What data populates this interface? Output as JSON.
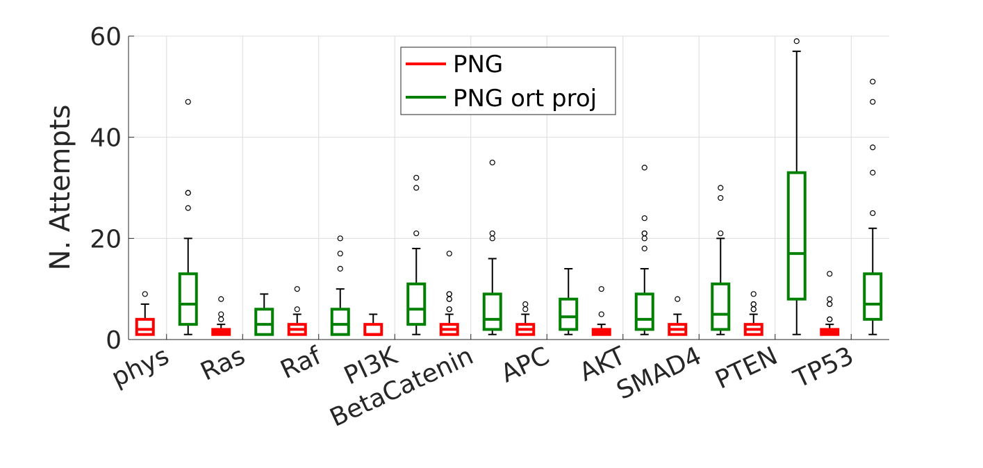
{
  "chart_data": {
    "type": "box",
    "ylabel": "N. Attempts",
    "ylim": [
      0,
      60
    ],
    "yticks": [
      0,
      20,
      40,
      60
    ],
    "grid": true,
    "legend_position": "top-center",
    "categories": [
      "phys",
      "Ras",
      "Raf",
      "PI3K",
      "BetaCatenin",
      "APC",
      "AKT",
      "SMAD4",
      "PTEN",
      "TP53"
    ],
    "series": [
      {
        "name": "PNG",
        "color": "#ff0000",
        "boxes": [
          {
            "whisker_low": 1,
            "q1": 1,
            "median": 2,
            "q3": 4,
            "whisker_high": 7,
            "outliers": [
              9
            ]
          },
          {
            "whisker_low": 1,
            "q1": 1,
            "median": 1.5,
            "q3": 2,
            "whisker_high": 3,
            "outliers": [
              4,
              5,
              8
            ]
          },
          {
            "whisker_low": 1,
            "q1": 1,
            "median": 2,
            "q3": 3,
            "whisker_high": 5,
            "outliers": [
              6,
              10
            ]
          },
          {
            "whisker_low": 1,
            "q1": 1,
            "median": 1,
            "q3": 3,
            "whisker_high": 5,
            "outliers": []
          },
          {
            "whisker_low": 1,
            "q1": 1,
            "median": 2,
            "q3": 3,
            "whisker_high": 5,
            "outliers": [
              6,
              6,
              8,
              8,
              9,
              9,
              17
            ]
          },
          {
            "whisker_low": 1,
            "q1": 1,
            "median": 2,
            "q3": 3,
            "whisker_high": 5,
            "outliers": [
              6,
              7
            ]
          },
          {
            "whisker_low": 1,
            "q1": 1,
            "median": 1.5,
            "q3": 2,
            "whisker_high": 3,
            "outliers": [
              5,
              10
            ]
          },
          {
            "whisker_low": 1,
            "q1": 1,
            "median": 2,
            "q3": 3,
            "whisker_high": 5,
            "outliers": [
              8
            ]
          },
          {
            "whisker_low": 1,
            "q1": 1,
            "median": 2,
            "q3": 3,
            "whisker_high": 5,
            "outliers": [
              6,
              6,
              7,
              7,
              9
            ]
          },
          {
            "whisker_low": 1,
            "q1": 1,
            "median": 1.5,
            "q3": 2,
            "whisker_high": 3,
            "outliers": [
              4,
              4,
              7,
              7,
              8,
              13
            ]
          }
        ]
      },
      {
        "name": "PNG ort proj",
        "color": "#008000",
        "boxes": [
          {
            "whisker_low": 1,
            "q1": 3,
            "median": 7,
            "q3": 13,
            "whisker_high": 20,
            "outliers": [
              26,
              29,
              29,
              47
            ]
          },
          {
            "whisker_low": 1,
            "q1": 1,
            "median": 3,
            "q3": 6,
            "whisker_high": 9,
            "outliers": []
          },
          {
            "whisker_low": 1,
            "q1": 1,
            "median": 3,
            "q3": 6,
            "whisker_high": 10,
            "outliers": [
              14,
              17,
              20
            ]
          },
          {
            "whisker_low": 1,
            "q1": 3,
            "median": 6,
            "q3": 11,
            "whisker_high": 18,
            "outliers": [
              21,
              30,
              32
            ]
          },
          {
            "whisker_low": 1,
            "q1": 2,
            "median": 4,
            "q3": 9,
            "whisker_high": 16,
            "outliers": [
              20,
              21,
              35
            ]
          },
          {
            "whisker_low": 1,
            "q1": 2,
            "median": 4.5,
            "q3": 8,
            "whisker_high": 14,
            "outliers": []
          },
          {
            "whisker_low": 1,
            "q1": 2,
            "median": 4,
            "q3": 9,
            "whisker_high": 14,
            "outliers": [
              18,
              20,
              21,
              21,
              24,
              34
            ]
          },
          {
            "whisker_low": 1,
            "q1": 2,
            "median": 5,
            "q3": 11,
            "whisker_high": 20,
            "outliers": [
              21,
              28,
              30
            ]
          },
          {
            "whisker_low": 1,
            "q1": 8,
            "median": 17,
            "q3": 33,
            "whisker_high": 57,
            "outliers": [
              59
            ]
          },
          {
            "whisker_low": 1,
            "q1": 4,
            "median": 7,
            "q3": 13,
            "whisker_high": 22,
            "outliers": [
              25,
              33,
              38,
              47,
              51
            ]
          }
        ]
      }
    ]
  }
}
